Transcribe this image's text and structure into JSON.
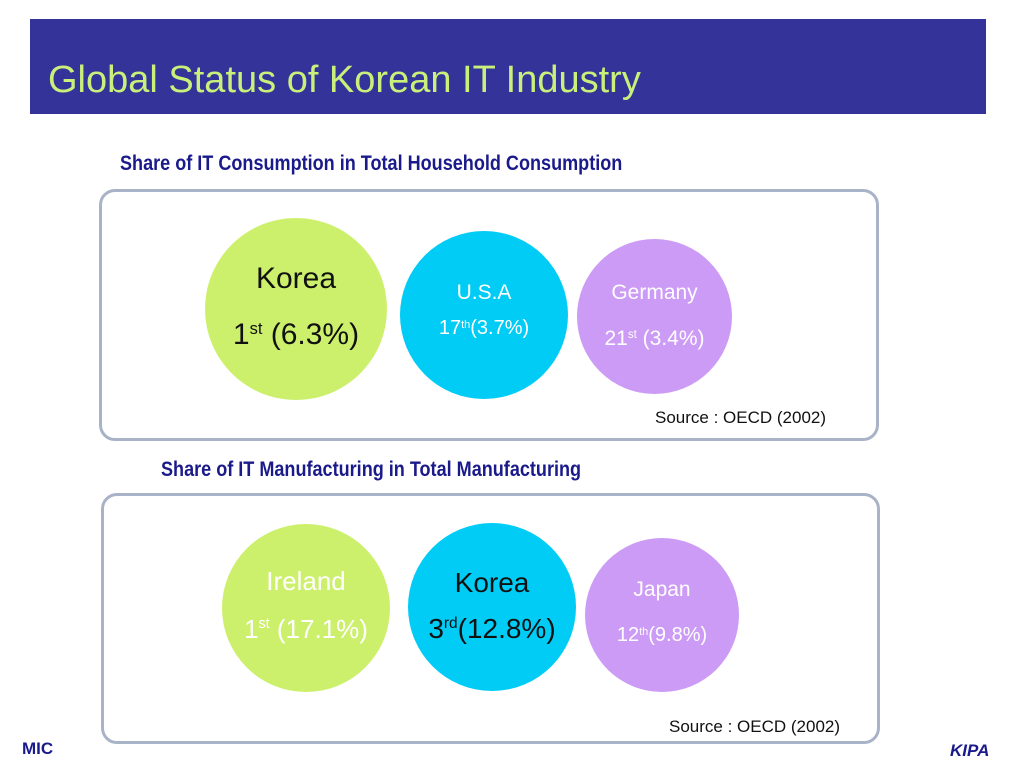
{
  "title": "Global Status of Korean IT Industry",
  "section1": {
    "heading": "Share of IT Consumption  in Total Household Consumption",
    "circles": [
      {
        "name": "Korea",
        "rank_num": "1",
        "rank_sup": "st",
        "rank_value": " (6.3%)",
        "color": "#ccf06c"
      },
      {
        "name": "U.S.A",
        "rank_num": "17",
        "rank_sup": "th",
        "rank_value": "(3.7%)",
        "color": "#00ccf5"
      },
      {
        "name": "Germany",
        "rank_num": "21",
        "rank_sup": "st",
        "rank_value": " (3.4%)",
        "color": "#cc9bf5"
      }
    ],
    "source": "Source : OECD (2002)"
  },
  "section2": {
    "heading": "Share of IT Manufacturing in Total Manufacturing",
    "circles": [
      {
        "name": "Ireland",
        "rank_num": "1",
        "rank_sup": "st",
        "rank_value": " (17.1%)",
        "color": "#ccf06c"
      },
      {
        "name": "Korea",
        "rank_num": "3",
        "rank_sup": "rd",
        "rank_value": "(12.8%)",
        "color": "#00ccf5"
      },
      {
        "name": "Japan",
        "rank_num": "12",
        "rank_sup": "th",
        "rank_value": "(9.8%)",
        "color": "#cc9bf5"
      }
    ],
    "source": "Source : OECD (2002)"
  },
  "footer": {
    "left": "MIC",
    "right": "KIPA"
  }
}
